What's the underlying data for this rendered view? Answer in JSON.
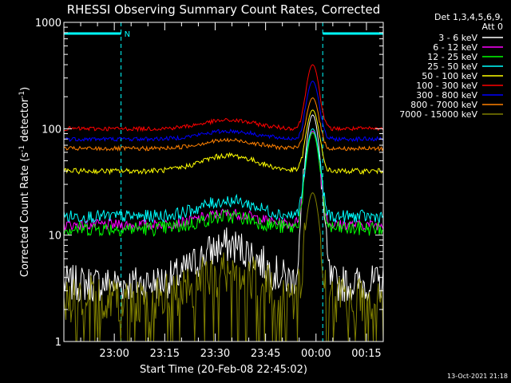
{
  "chart_data": {
    "type": "line",
    "title": "RHESSI Observing Summary Count Rates, Corrected",
    "xlabel": "Start Time (20-Feb-08 22:45:02)",
    "ylabel": "Corrected Count Rate (s",
    "ylabel_sup1": "-1",
    "ylabel_mid": " detector",
    "ylabel_sup2": "-1",
    "ylabel_end": ")",
    "yscale": "log",
    "ylim": [
      1,
      1000
    ],
    "xlim_minutes": [
      0,
      95
    ],
    "x_unit": "minutes after 22:45:02",
    "x_ticks": [
      {
        "minute": 15,
        "label": "23:00"
      },
      {
        "minute": 30,
        "label": "23:15"
      },
      {
        "minute": 45,
        "label": "23:30"
      },
      {
        "minute": 60,
        "label": "23:45"
      },
      {
        "minute": 75,
        "label": "00:00"
      },
      {
        "minute": 90,
        "label": "00:15"
      }
    ],
    "y_ticks": [
      {
        "value": 1,
        "label": "1"
      },
      {
        "value": 10,
        "label": "10"
      },
      {
        "value": 100,
        "label": "100"
      },
      {
        "value": 1000,
        "label": "1000"
      }
    ],
    "legend_header": [
      "Det 1,3,4,5,6,9,",
      "Att 0"
    ],
    "legend_position": "right",
    "footer": "13-Oct-2021 21:18",
    "night_marker": "N",
    "night_intervals": [
      [
        0,
        17
      ],
      [
        77,
        95
      ]
    ],
    "night_color": "#00ffff",
    "series": [
      {
        "name": "3 - 6 keV",
        "color": "#ffffff",
        "base": 3.5,
        "hump": 8,
        "peak": 135,
        "noise": 0.35,
        "floor_dropouts": false
      },
      {
        "name": "6 - 12 keV",
        "color": "#ff00ff",
        "base": 12.5,
        "hump": 16,
        "peak": 95,
        "noise": 0.1,
        "floor_dropouts": false
      },
      {
        "name": "12 - 25 keV",
        "color": "#00ff00",
        "base": 11.5,
        "hump": 15,
        "peak": 92,
        "noise": 0.14,
        "floor_dropouts": false
      },
      {
        "name": "25 - 50 keV",
        "color": "#00ffff",
        "base": 15,
        "hump": 21,
        "peak": 100,
        "noise": 0.12,
        "floor_dropouts": false
      },
      {
        "name": "50 - 100 keV",
        "color": "#ffff00",
        "base": 40,
        "hump": 56,
        "peak": 150,
        "noise": 0.05,
        "floor_dropouts": false
      },
      {
        "name": "100 - 300 keV",
        "color": "#ff0000",
        "base": 100,
        "hump": 120,
        "peak": 400,
        "noise": 0.04,
        "floor_dropouts": false
      },
      {
        "name": "300 - 800 keV",
        "color": "#0000ff",
        "base": 80,
        "hump": 95,
        "peak": 280,
        "noise": 0.04,
        "floor_dropouts": false
      },
      {
        "name": "800 - 7000 keV",
        "color": "#ff8000",
        "base": 65,
        "hump": 78,
        "peak": 195,
        "noise": 0.04,
        "floor_dropouts": false
      },
      {
        "name": "7000 - 15000 keV",
        "color": "#808000",
        "base": 2.5,
        "hump": 4.5,
        "peak": 25,
        "noise": 0.45,
        "floor_dropouts": true
      }
    ]
  }
}
